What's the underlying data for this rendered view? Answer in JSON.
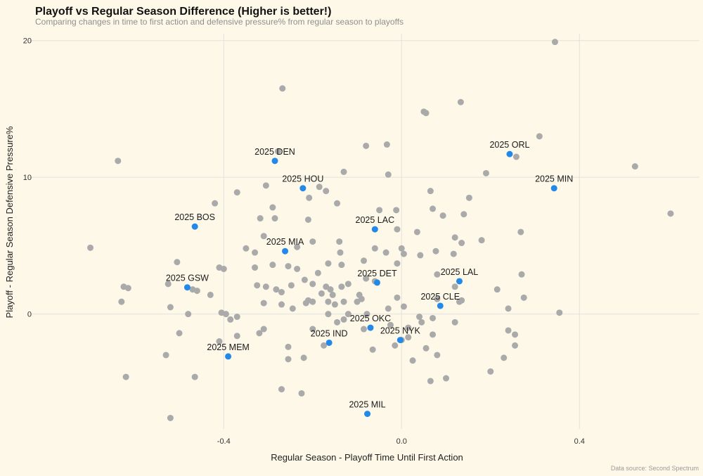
{
  "chart_data": {
    "type": "scatter",
    "title": "Playoff vs Regular Season Difference (Higher is better!)",
    "subtitle": "Comparing changes in time to first action and defensive pressure% from regular season to playoffs",
    "xlabel": "Regular Season - Playoff Time Until First Action",
    "ylabel": "Playoff - Regular Season Defensive Pressure%",
    "caption": "Data source: Second Spectrum",
    "xlim": [
      -0.84,
      0.67
    ],
    "ylim": [
      -8.4,
      20.5
    ],
    "xticks": [
      -0.4,
      0.0,
      0.4
    ],
    "xtick_labels": [
      "-0.4",
      "0.0",
      "0.4"
    ],
    "yticks": [
      0,
      10,
      20
    ],
    "ytick_labels": [
      "0",
      "10",
      "20"
    ],
    "grid": true,
    "colors": {
      "background": "#fdf8e8",
      "other": "#aaaaaa",
      "highlight": "#2389e8"
    },
    "highlighted": [
      {
        "label": "2025 DEN",
        "x": -0.285,
        "y": 11.2
      },
      {
        "label": "2025 HOU",
        "x": -0.222,
        "y": 9.2
      },
      {
        "label": "2025 ORL",
        "x": 0.243,
        "y": 11.7
      },
      {
        "label": "2025 MIN",
        "x": 0.343,
        "y": 9.2
      },
      {
        "label": "2025 BOS",
        "x": -0.465,
        "y": 6.4
      },
      {
        "label": "2025 LAC",
        "x": -0.06,
        "y": 6.2
      },
      {
        "label": "2025 MIA",
        "x": -0.262,
        "y": 4.6
      },
      {
        "label": "2025 GSW",
        "x": -0.482,
        "y": 1.95
      },
      {
        "label": "2025 DET",
        "x": -0.055,
        "y": 2.3
      },
      {
        "label": "2025 LAL",
        "x": 0.13,
        "y": 2.4
      },
      {
        "label": "2025 CLE",
        "x": 0.087,
        "y": 0.6
      },
      {
        "label": "2025 OKC",
        "x": -0.07,
        "y": -1.0
      },
      {
        "label": "2025 NYK",
        "x": -0.003,
        "y": -1.9
      },
      {
        "label": "2025 IND",
        "x": -0.163,
        "y": -2.1
      },
      {
        "label": "2025 MEM",
        "x": -0.39,
        "y": -3.1
      },
      {
        "label": "2025 MIL",
        "x": -0.077,
        "y": -7.3
      }
    ],
    "others": [
      [
        0.345,
        19.9
      ],
      [
        -0.268,
        16.5
      ],
      [
        0.05,
        14.8
      ],
      [
        0.055,
        14.7
      ],
      [
        0.133,
        15.5
      ],
      [
        -0.638,
        11.2
      ],
      [
        -0.278,
        11.9
      ],
      [
        0.258,
        11.5
      ],
      [
        0.31,
        13.0
      ],
      [
        0.525,
        10.8
      ],
      [
        -0.08,
        12.3
      ],
      [
        -0.033,
        12.4
      ],
      [
        -0.13,
        10.4
      ],
      [
        -0.03,
        10.2
      ],
      [
        -0.305,
        9.4
      ],
      [
        -0.185,
        9.3
      ],
      [
        -0.17,
        9.0
      ],
      [
        -0.37,
        8.9
      ],
      [
        -0.208,
        8.5
      ],
      [
        0.065,
        9.0
      ],
      [
        0.19,
        10.3
      ],
      [
        -0.42,
        8.1
      ],
      [
        -0.145,
        8.1
      ],
      [
        0.152,
        8.5
      ],
      [
        -0.29,
        7.8
      ],
      [
        -0.05,
        7.6
      ],
      [
        -0.012,
        7.6
      ],
      [
        0.07,
        7.7
      ],
      [
        0.093,
        7.2
      ],
      [
        0.14,
        7.3
      ],
      [
        -0.318,
        7.0
      ],
      [
        -0.285,
        7.0
      ],
      [
        -0.21,
        6.9
      ],
      [
        0.605,
        7.35
      ],
      [
        -0.31,
        5.7
      ],
      [
        -0.2,
        5.3
      ],
      [
        -0.14,
        5.3
      ],
      [
        -0.01,
        6.2
      ],
      [
        0.035,
        6.0
      ],
      [
        0.12,
        5.6
      ],
      [
        0.135,
        5.2
      ],
      [
        0.18,
        5.4
      ],
      [
        0.268,
        6.0
      ],
      [
        -0.7,
        4.85
      ],
      [
        -0.35,
        4.8
      ],
      [
        -0.33,
        4.5
      ],
      [
        -0.235,
        4.9
      ],
      [
        -0.138,
        4.5
      ],
      [
        -0.06,
        4.8
      ],
      [
        0.0,
        4.8
      ],
      [
        -0.035,
        4.5
      ],
      [
        0.005,
        4.4
      ],
      [
        0.042,
        4.3
      ],
      [
        -0.505,
        3.8
      ],
      [
        -0.41,
        3.4
      ],
      [
        -0.4,
        3.3
      ],
      [
        -0.33,
        3.4
      ],
      [
        -0.29,
        3.6
      ],
      [
        -0.255,
        3.5
      ],
      [
        -0.235,
        3.3
      ],
      [
        -0.188,
        3.0
      ],
      [
        -0.165,
        3.7
      ],
      [
        -0.135,
        3.6
      ],
      [
        -0.085,
        3.9
      ],
      [
        -0.01,
        3.7
      ],
      [
        0.077,
        4.6
      ],
      [
        0.117,
        4.4
      ],
      [
        0.08,
        2.9
      ],
      [
        0.27,
        2.9
      ],
      [
        -0.525,
        2.2
      ],
      [
        -0.625,
        2.0
      ],
      [
        -0.615,
        1.9
      ],
      [
        -0.47,
        1.8
      ],
      [
        -0.46,
        1.7
      ],
      [
        -0.43,
        1.4
      ],
      [
        -0.325,
        2.1
      ],
      [
        -0.305,
        2.0
      ],
      [
        -0.282,
        1.8
      ],
      [
        -0.248,
        2.1
      ],
      [
        -0.218,
        2.5
      ],
      [
        -0.2,
        2.2
      ],
      [
        -0.17,
        2.0
      ],
      [
        -0.16,
        1.8
      ],
      [
        -0.135,
        2.0
      ],
      [
        -0.12,
        2.2
      ],
      [
        -0.08,
        2.6
      ],
      [
        -0.06,
        2.4
      ],
      [
        -0.095,
        1.4
      ],
      [
        -0.27,
        1.6
      ],
      [
        -0.21,
        1.0
      ],
      [
        -0.63,
        0.9
      ],
      [
        -0.52,
        0.5
      ],
      [
        -0.48,
        0.0
      ],
      [
        -0.405,
        0.1
      ],
      [
        -0.395,
        0.0
      ],
      [
        -0.385,
        -0.4
      ],
      [
        -0.37,
        -0.2
      ],
      [
        -0.31,
        0.8
      ],
      [
        -0.27,
        0.7
      ],
      [
        -0.245,
        0.4
      ],
      [
        -0.215,
        0.8
      ],
      [
        -0.2,
        0.9
      ],
      [
        -0.18,
        1.5
      ],
      [
        -0.155,
        1.4
      ],
      [
        -0.15,
        0.7
      ],
      [
        -0.13,
        0.9
      ],
      [
        -0.1,
        0.9
      ],
      [
        -0.09,
        1.1
      ],
      [
        -0.03,
        0.4
      ],
      [
        -0.01,
        1.2
      ],
      [
        0.005,
        0.55
      ],
      [
        0.04,
        -0.2
      ],
      [
        0.08,
        1.1
      ],
      [
        0.12,
        2.0
      ],
      [
        0.13,
        0.9
      ],
      [
        0.215,
        1.8
      ],
      [
        0.24,
        0.4
      ],
      [
        0.275,
        1.2
      ],
      [
        0.355,
        0.1
      ],
      [
        -0.165,
        0.0
      ],
      [
        -0.12,
        0.0
      ],
      [
        -0.078,
        0.0
      ],
      [
        0.045,
        -0.6
      ],
      [
        0.07,
        -0.3
      ],
      [
        0.12,
        -0.6
      ],
      [
        -0.5,
        -1.4
      ],
      [
        -0.53,
        -3.0
      ],
      [
        -0.62,
        -4.6
      ],
      [
        -0.465,
        -4.6
      ],
      [
        -0.41,
        -2.0
      ],
      [
        -0.37,
        -1.6
      ],
      [
        -0.32,
        -1.4
      ],
      [
        -0.31,
        -1.1
      ],
      [
        -0.255,
        -2.4
      ],
      [
        -0.255,
        -3.3
      ],
      [
        -0.22,
        -3.2
      ],
      [
        -0.175,
        -2.3
      ],
      [
        -0.2,
        -1.1
      ],
      [
        -0.145,
        -0.6
      ],
      [
        -0.13,
        -0.4
      ],
      [
        -0.085,
        -1.1
      ],
      [
        -0.065,
        -2.6
      ],
      [
        -0.015,
        -2.3
      ],
      [
        0.0,
        -1.9
      ],
      [
        0.015,
        -1.7
      ],
      [
        0.015,
        -1.0
      ],
      [
        0.025,
        -3.4
      ],
      [
        0.07,
        -1.5
      ],
      [
        0.055,
        -2.5
      ],
      [
        0.08,
        -3.0
      ],
      [
        0.065,
        -4.9
      ],
      [
        0.1,
        -4.7
      ],
      [
        0.2,
        -4.2
      ],
      [
        0.23,
        -3.2
      ],
      [
        0.24,
        -1.2
      ],
      [
        0.255,
        -2.3
      ],
      [
        0.255,
        -1.5
      ],
      [
        -0.225,
        -5.8
      ],
      [
        -0.27,
        -5.5
      ],
      [
        -0.52,
        -7.6
      ],
      [
        -0.025,
        -0.8
      ],
      [
        -0.165,
        0.9
      ],
      [
        0.135,
        1.0
      ]
    ]
  }
}
